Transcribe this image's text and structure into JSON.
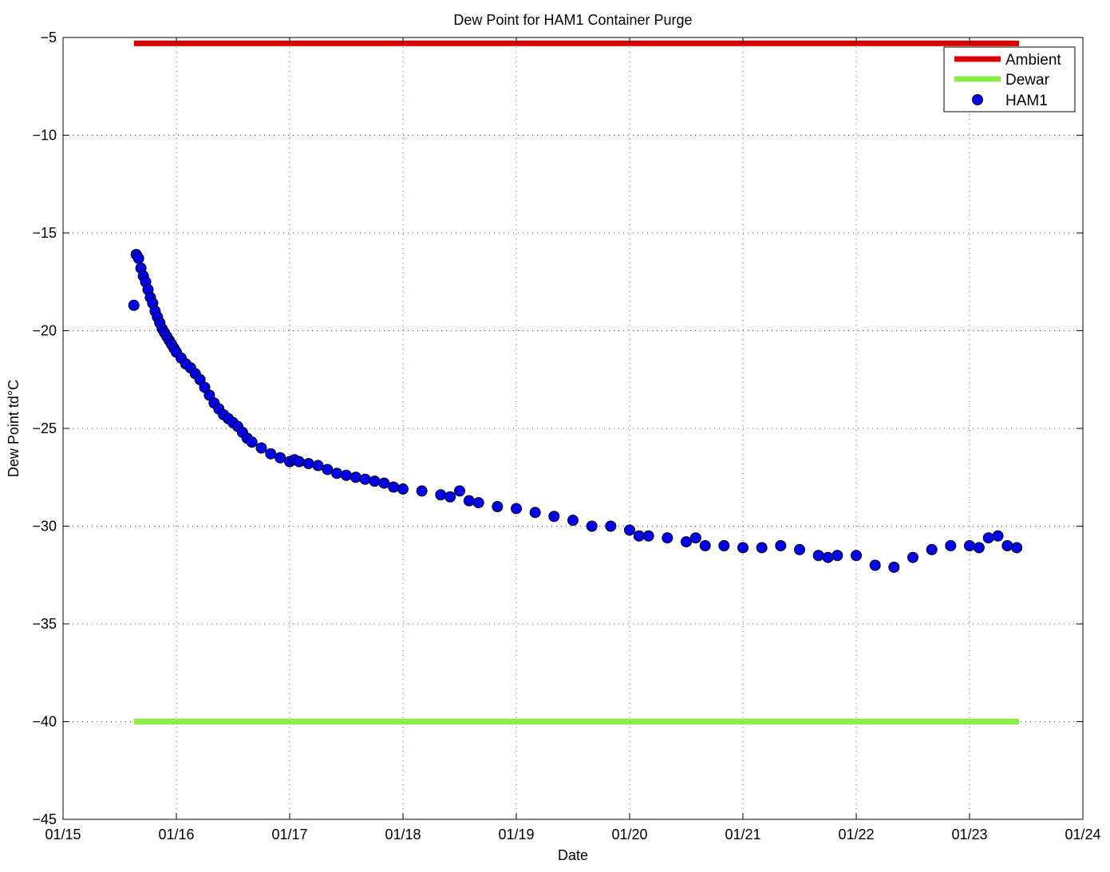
{
  "chart_data": {
    "type": "scatter",
    "title": "Dew Point for HAM1 Container Purge",
    "xlabel": "Date",
    "ylabel": "Dew Point td°C",
    "x_type": "date",
    "xlim": [
      "01/15",
      "01/24"
    ],
    "ylim": [
      -45,
      -5
    ],
    "x_ticks": [
      "01/15",
      "01/16",
      "01/17",
      "01/18",
      "01/19",
      "01/20",
      "01/21",
      "01/22",
      "01/23",
      "01/24"
    ],
    "y_ticks": [
      "-45",
      "-40",
      "-35",
      "-30",
      "-25",
      "-20",
      "-15",
      "-10",
      "-5"
    ],
    "grid": true,
    "legend_position": "top-right",
    "series": [
      {
        "name": "Ambient",
        "kind": "line",
        "color": "#dd0000",
        "x": [
          "01/15 15:00",
          "01/23 10:30"
        ],
        "y": [
          -5.3,
          -5.3
        ]
      },
      {
        "name": "Dewar",
        "kind": "line",
        "color": "#88ee44",
        "x": [
          "01/15 15:00",
          "01/23 10:30"
        ],
        "y": [
          -40,
          -40
        ]
      },
      {
        "name": "HAM1",
        "kind": "scatter",
        "color": "#0000ee",
        "x": [
          "01/15 15:00",
          "01/15 15:30",
          "01/15 16:00",
          "01/15 16:30",
          "01/15 17:00",
          "01/15 17:30",
          "01/15 18:00",
          "01/15 18:30",
          "01/15 19:00",
          "01/15 19:30",
          "01/15 20:00",
          "01/15 20:30",
          "01/15 21:00",
          "01/15 21:30",
          "01/15 22:00",
          "01/15 22:30",
          "01/15 23:00",
          "01/15 23:30",
          "01/16 00:00",
          "01/16 01:00",
          "01/16 02:00",
          "01/16 03:00",
          "01/16 04:00",
          "01/16 05:00",
          "01/16 06:00",
          "01/16 07:00",
          "01/16 08:00",
          "01/16 09:00",
          "01/16 10:00",
          "01/16 11:00",
          "01/16 12:00",
          "01/16 13:00",
          "01/16 14:00",
          "01/16 15:00",
          "01/16 16:00",
          "01/16 18:00",
          "01/16 20:00",
          "01/16 22:00",
          "01/17 00:00",
          "01/17 01:00",
          "01/17 02:00",
          "01/17 04:00",
          "01/17 06:00",
          "01/17 08:00",
          "01/17 10:00",
          "01/17 12:00",
          "01/17 14:00",
          "01/17 16:00",
          "01/17 18:00",
          "01/17 20:00",
          "01/17 22:00",
          "01/18 00:00",
          "01/18 04:00",
          "01/18 08:00",
          "01/18 10:00",
          "01/18 12:00",
          "01/18 14:00",
          "01/18 16:00",
          "01/18 20:00",
          "01/19 00:00",
          "01/19 04:00",
          "01/19 08:00",
          "01/19 12:00",
          "01/19 16:00",
          "01/19 20:00",
          "01/20 00:00",
          "01/20 02:00",
          "01/20 04:00",
          "01/20 08:00",
          "01/20 12:00",
          "01/20 14:00",
          "01/20 16:00",
          "01/20 20:00",
          "01/21 00:00",
          "01/21 04:00",
          "01/21 08:00",
          "01/21 12:00",
          "01/21 16:00",
          "01/21 18:00",
          "01/21 20:00",
          "01/22 00:00",
          "01/22 04:00",
          "01/22 08:00",
          "01/22 12:00",
          "01/22 16:00",
          "01/22 20:00",
          "01/23 00:00",
          "01/23 02:00",
          "01/23 04:00",
          "01/23 06:00",
          "01/23 08:00",
          "01/23 10:00"
        ],
        "y": [
          -18.7,
          -16.1,
          -16.3,
          -16.8,
          -17.2,
          -17.5,
          -17.9,
          -18.3,
          -18.6,
          -19.0,
          -19.3,
          -19.6,
          -19.9,
          -20.1,
          -20.3,
          -20.5,
          -20.7,
          -20.9,
          -21.1,
          -21.4,
          -21.7,
          -21.9,
          -22.2,
          -22.5,
          -22.9,
          -23.3,
          -23.7,
          -24.0,
          -24.3,
          -24.5,
          -24.7,
          -24.9,
          -25.2,
          -25.5,
          -25.7,
          -26.0,
          -26.3,
          -26.5,
          -26.7,
          -26.6,
          -26.7,
          -26.8,
          -26.9,
          -27.1,
          -27.3,
          -27.4,
          -27.5,
          -27.6,
          -27.7,
          -27.8,
          -28.0,
          -28.1,
          -28.2,
          -28.4,
          -28.5,
          -28.2,
          -28.7,
          -28.8,
          -29.0,
          -29.1,
          -29.3,
          -29.5,
          -29.7,
          -30.0,
          -30.0,
          -30.2,
          -30.5,
          -30.5,
          -30.6,
          -30.8,
          -30.6,
          -31.0,
          -31.0,
          -31.1,
          -31.1,
          -31.0,
          -31.2,
          -31.5,
          -31.6,
          -31.5,
          -31.5,
          -32.0,
          -32.1,
          -31.6,
          -31.2,
          -31.0,
          -31.0,
          -31.1,
          -30.6,
          -30.5,
          -31.0,
          -31.1
        ]
      }
    ]
  }
}
